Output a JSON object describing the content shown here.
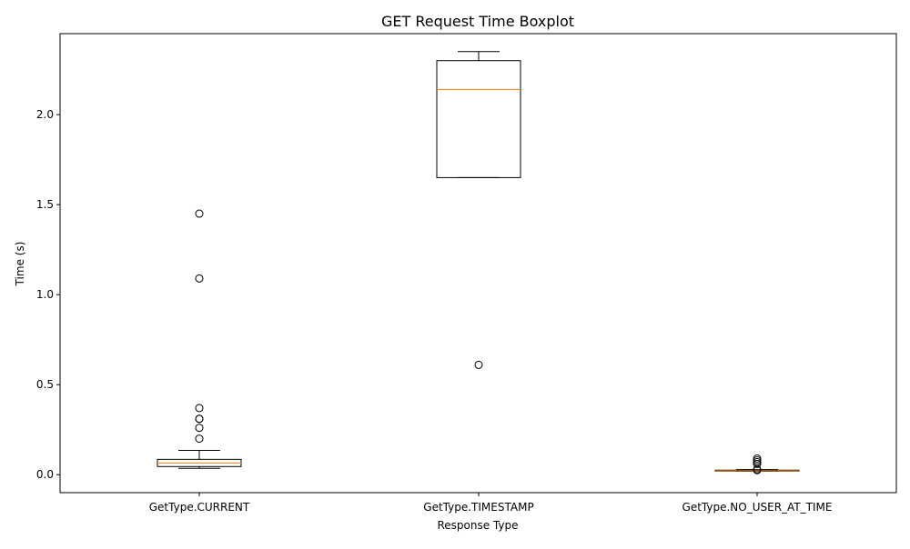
{
  "chart_data": {
    "type": "box",
    "title": "GET Request Time Boxplot",
    "xlabel": "Response Type",
    "ylabel": "Time (s)",
    "ylim": [
      -0.1,
      2.45
    ],
    "yticks": [
      0.0,
      0.5,
      1.0,
      1.5,
      2.0
    ],
    "ytick_labels": [
      "0.0",
      "0.5",
      "1.0",
      "1.5",
      "2.0"
    ],
    "grid": false,
    "categories": [
      "GetType.CURRENT",
      "GetType.TIMESTAMP",
      "GetType.NO_USER_AT_TIME"
    ],
    "boxes": [
      {
        "category": "GetType.CURRENT",
        "whisker_low": 0.035,
        "q1": 0.045,
        "median": 0.065,
        "q3": 0.085,
        "whisker_high": 0.135,
        "outliers": [
          1.45,
          1.09,
          0.37,
          0.31,
          0.31,
          0.26,
          0.2
        ]
      },
      {
        "category": "GetType.TIMESTAMP",
        "whisker_low": 1.65,
        "q1": 1.65,
        "median": 2.14,
        "q3": 2.3,
        "whisker_high": 2.35,
        "outliers": [
          0.61
        ]
      },
      {
        "category": "GetType.NO_USER_AT_TIME",
        "whisker_low": 0.02,
        "q1": 0.02,
        "median": 0.022,
        "q3": 0.025,
        "whisker_high": 0.028,
        "outliers": [
          0.09,
          0.08,
          0.07,
          0.06,
          0.03,
          0.025
        ]
      }
    ],
    "colors": {
      "box": "#000000",
      "median": "#ff7f0e",
      "outlier": "#000000",
      "axes": "#000000"
    }
  }
}
